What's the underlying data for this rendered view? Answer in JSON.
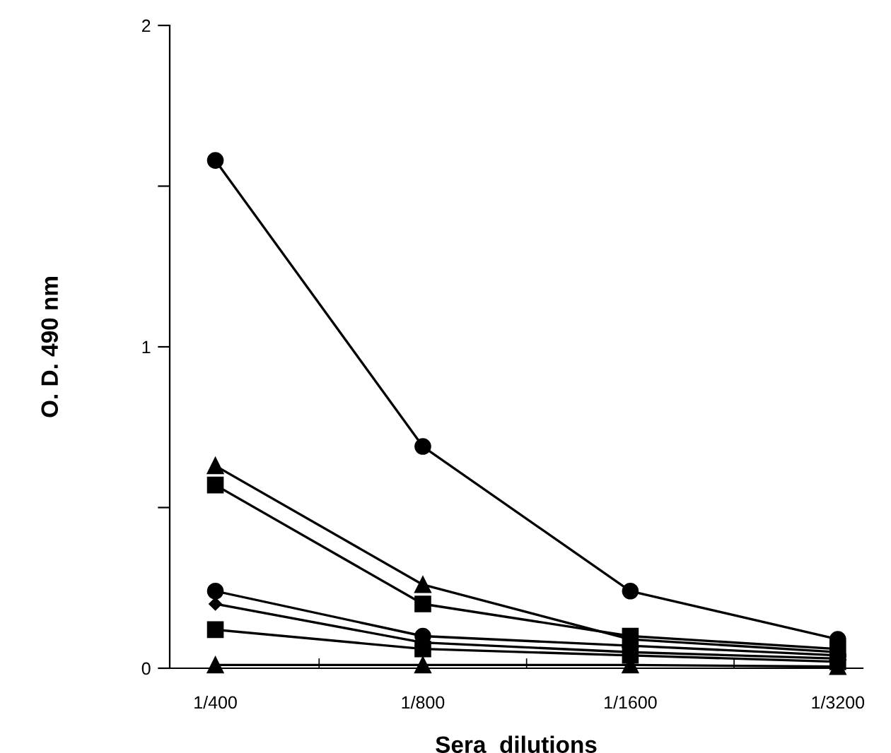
{
  "chart_data": {
    "type": "line",
    "xlabel": "Sera  dilutions",
    "ylabel": "O. D. 490 nm",
    "categories": [
      "1/400",
      "1/800",
      "1/1600",
      "1/3200"
    ],
    "ylim": [
      0,
      2
    ],
    "yticks": [
      0,
      {
        "value": 0.5,
        "label": null
      },
      1,
      {
        "value": 1.5,
        "label": null
      },
      2
    ],
    "grid": false,
    "legend": false,
    "line_style": "solid",
    "series": [
      {
        "color": "#000000",
        "marker": "circle",
        "values": [
          1.58,
          0.69,
          0.24,
          0.09
        ]
      },
      {
        "color": "#000000",
        "marker": "triangle",
        "values": [
          0.63,
          0.26,
          0.09,
          0.05
        ]
      },
      {
        "color": "#000000",
        "marker": "square",
        "values": [
          0.57,
          0.2,
          0.1,
          0.06
        ]
      },
      {
        "color": "#000000",
        "marker": "circle",
        "values": [
          0.24,
          0.1,
          0.07,
          0.04
        ]
      },
      {
        "color": "#000000",
        "marker": "diamond",
        "values": [
          0.2,
          0.08,
          0.05,
          0.03
        ]
      },
      {
        "color": "#000000",
        "marker": "square",
        "values": [
          0.12,
          0.06,
          0.04,
          0.02
        ]
      },
      {
        "color": "#000000",
        "marker": "triangle",
        "values": [
          0.01,
          0.01,
          0.01,
          0.005
        ]
      }
    ]
  }
}
